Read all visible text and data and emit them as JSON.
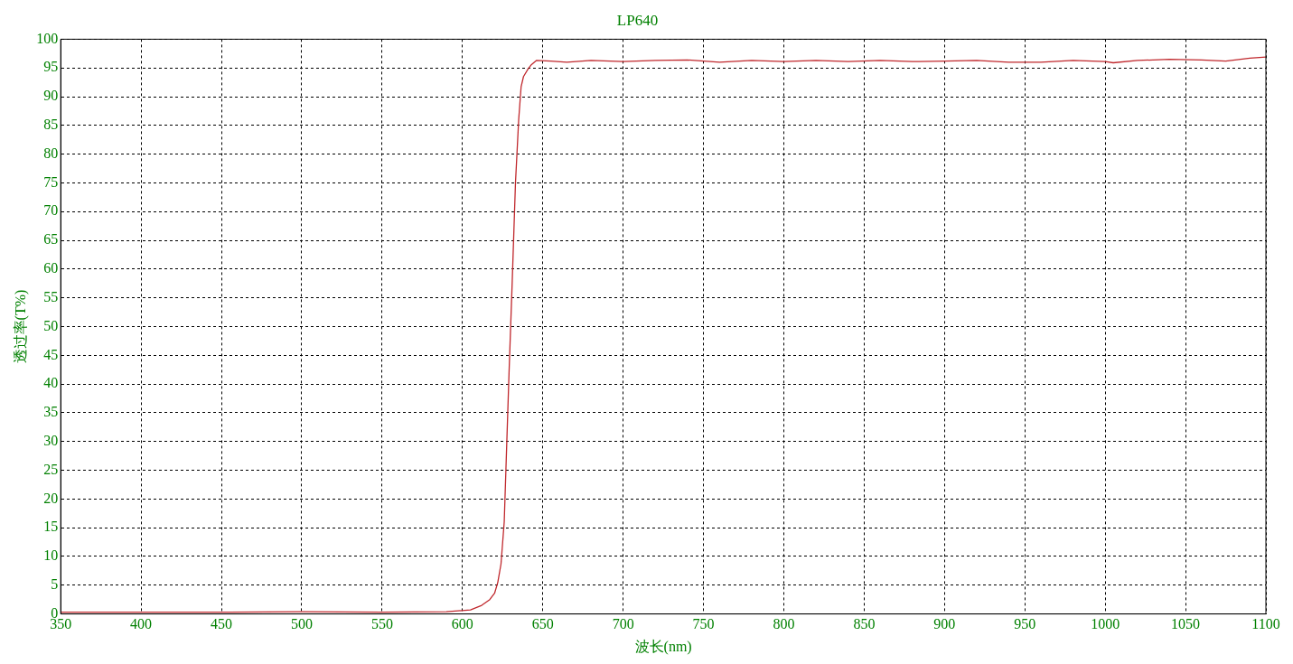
{
  "chart_data": {
    "type": "line",
    "title": "LP640",
    "xlabel": "波长(nm)",
    "ylabel": "透过率(T%)",
    "xlim": [
      350,
      1100
    ],
    "xticks": [
      350,
      400,
      450,
      500,
      550,
      600,
      650,
      700,
      750,
      800,
      850,
      900,
      950,
      1000,
      1050,
      1100
    ],
    "ylim": [
      0,
      100
    ],
    "yticks": [
      0,
      5,
      10,
      15,
      20,
      25,
      30,
      35,
      40,
      45,
      50,
      55,
      60,
      65,
      70,
      75,
      80,
      85,
      90,
      95,
      100
    ],
    "grid": true,
    "legend": false,
    "marker": "none",
    "line_style": "solid",
    "series": [
      {
        "color": "#c0282d",
        "x": [
          350,
          400,
          450,
          500,
          550,
          590,
          605,
          612,
          617,
          620,
          622,
          624,
          626,
          627.5,
          629,
          631,
          633,
          635,
          636.5,
          638,
          641,
          643,
          646,
          655,
          665,
          680,
          700,
          720,
          740,
          760,
          780,
          800,
          820,
          840,
          860,
          880,
          900,
          920,
          940,
          960,
          980,
          1000,
          1005,
          1020,
          1040,
          1060,
          1075,
          1090,
          1100
        ],
        "values": [
          0.3,
          0.3,
          0.3,
          0.4,
          0.3,
          0.4,
          0.7,
          1.5,
          2.5,
          3.6,
          5.5,
          8.7,
          16,
          29,
          42,
          58,
          75,
          86,
          91.7,
          93.5,
          94.9,
          95.6,
          96.3,
          96.2,
          96,
          96.3,
          96.1,
          96.3,
          96.4,
          96,
          96.3,
          96.1,
          96.3,
          96.1,
          96.3,
          96.1,
          96.2,
          96.3,
          96,
          96,
          96.3,
          96.1,
          95.9,
          96.3,
          96.5,
          96.4,
          96.2,
          96.7,
          96.9
        ]
      }
    ]
  }
}
